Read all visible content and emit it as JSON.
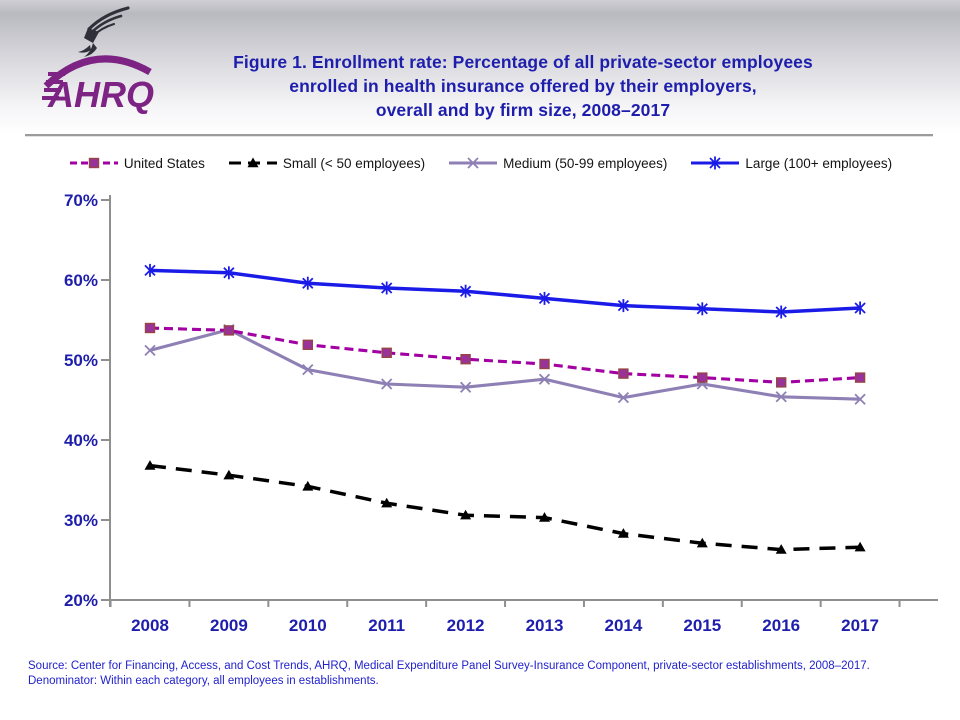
{
  "header": {
    "logo": {
      "org": "AHRQ",
      "eagle_icon": "hhs-eagle-icon",
      "brand_color": "#7c2383"
    },
    "title_lines": [
      "Figure 1. Enrollment rate: Percentage of all private-sector employees",
      "enrolled in health insurance offered by their employers,",
      "overall and by firm size, 2008–2017"
    ],
    "title_color": "#1e1ead"
  },
  "chart_data": {
    "type": "line",
    "title": "Enrollment rate: Percentage of all private-sector employees enrolled in health insurance offered by their employers, overall and by firm size, 2008–2017",
    "categories": [
      "2008",
      "2009",
      "2010",
      "2011",
      "2012",
      "2013",
      "2014",
      "2015",
      "2016",
      "2017"
    ],
    "series": [
      {
        "name": "United States",
        "values": [
          54.0,
          53.7,
          51.9,
          50.9,
          50.1,
          49.5,
          48.3,
          47.8,
          47.2,
          47.8
        ],
        "color": "#a300a3",
        "marker": "square",
        "marker_fill": "#993399",
        "marker_stroke": "#964444",
        "line_style": "dashed"
      },
      {
        "name": "Small (< 50 employees)",
        "values": [
          36.8,
          35.6,
          34.2,
          32.1,
          30.6,
          30.3,
          28.3,
          27.1,
          26.3,
          26.6
        ],
        "color": "#000000",
        "marker": "triangle",
        "line_style": "long-dash"
      },
      {
        "name": "Medium (50-99 employees)",
        "values": [
          51.2,
          53.8,
          48.8,
          47.0,
          46.6,
          47.6,
          45.3,
          47.0,
          45.4,
          45.1
        ],
        "color": "#8e80b4",
        "marker": "x-cross",
        "line_style": "solid"
      },
      {
        "name": "Large (100+ employees)",
        "values": [
          61.2,
          60.9,
          59.6,
          59.0,
          58.6,
          57.7,
          56.8,
          56.4,
          56.0,
          56.5
        ],
        "color": "#1b1be8",
        "marker": "asterisk",
        "line_style": "solid"
      }
    ],
    "xlabel": "",
    "ylabel": "",
    "ylim": [
      20,
      70
    ],
    "y_tick_step": 10,
    "y_tick_labels": [
      "20%",
      "30%",
      "40%",
      "50%",
      "60%",
      "70%"
    ],
    "grid": false,
    "legend_position": "top",
    "axis_color": "#8f8f8f",
    "tick_label_color": "#1e1ead"
  },
  "footer": {
    "source_lines": [
      "Source: Center for Financing, Access, and Cost Trends, AHRQ, Medical Expenditure Panel Survey-Insurance Component, private-sector establishments, 2008–2017.",
      "Denominator: Within each category, all employees in establishments."
    ]
  }
}
